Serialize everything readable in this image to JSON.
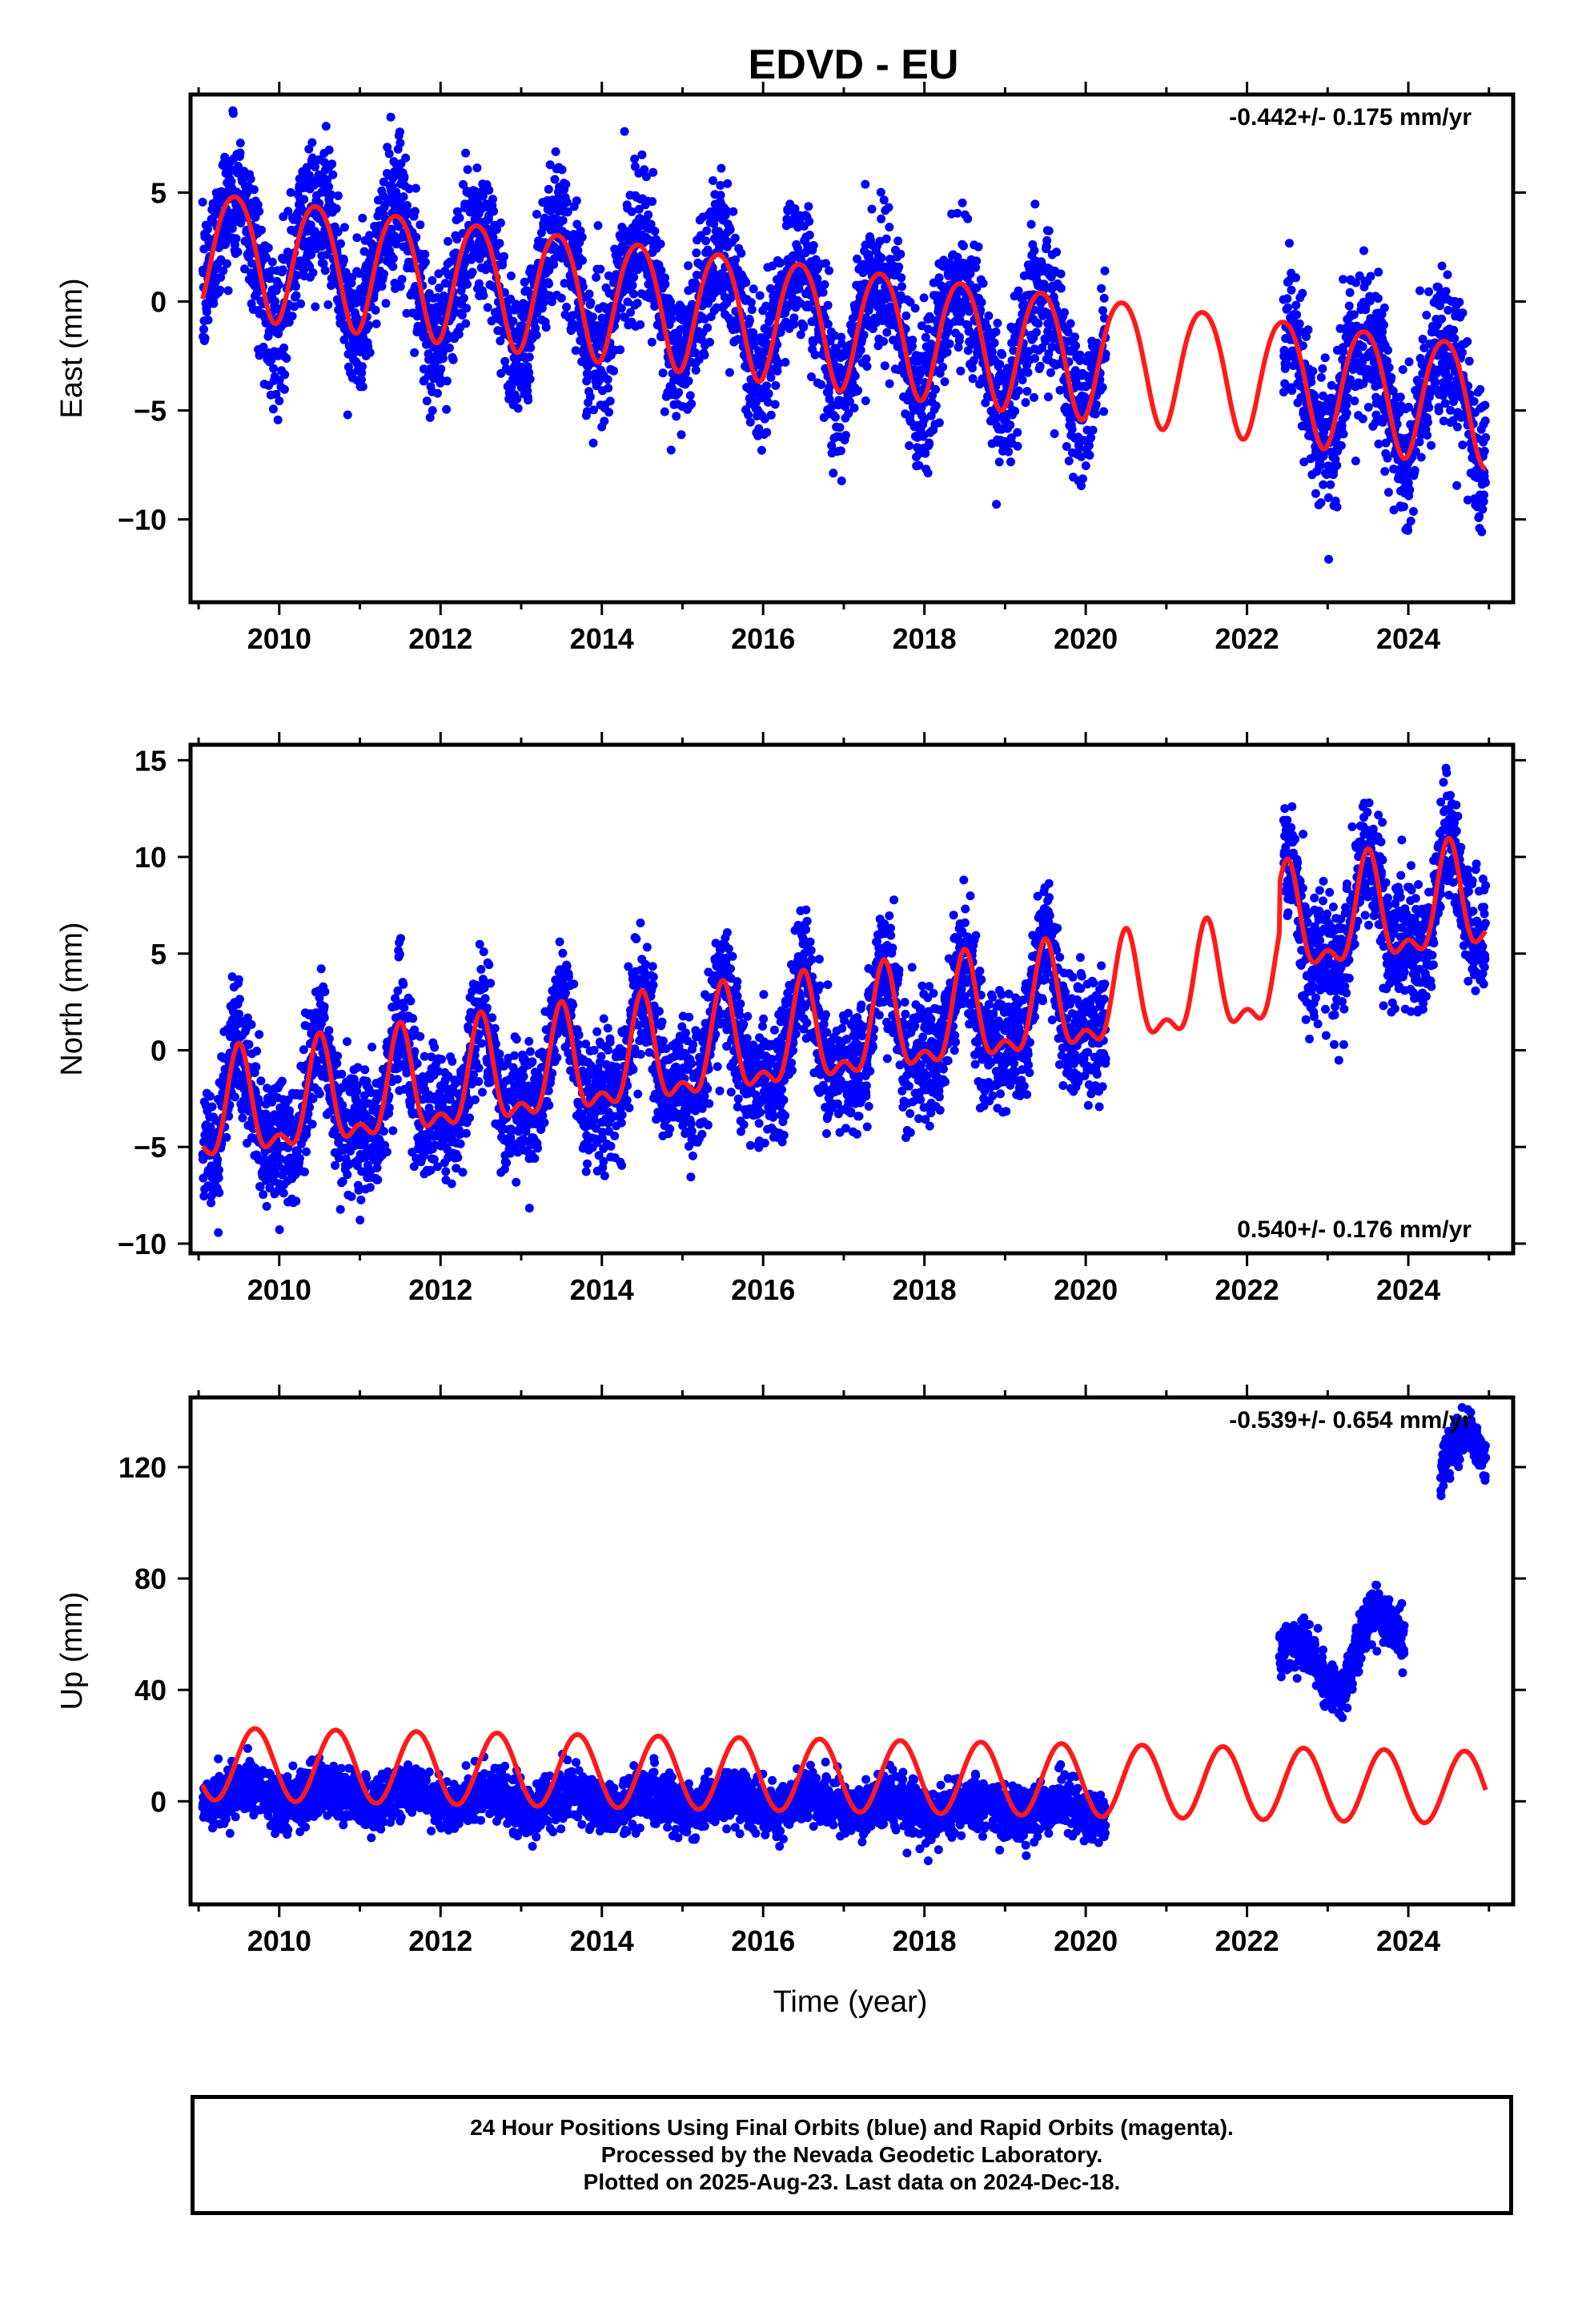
{
  "title": "EDVD - EU",
  "colors": {
    "data": "#0000ff",
    "model": "#ff1a1a",
    "axes": "#000000"
  },
  "xlabel": "Time (year)",
  "footer": {
    "line1": "24 Hour Positions Using Final Orbits (blue) and Rapid Orbits (magenta).",
    "line2": "Processed by the Nevada Geodetic Laboratory.",
    "line3": "Plotted on 2025-Aug-23. Last data on 2024-Dec-18."
  },
  "chart_data": [
    {
      "type": "scatter",
      "ylabel": "East (mm)",
      "rate_label": "-0.442+/- 0.175 mm/yr",
      "rate_position": "top-right",
      "xlim": [
        2008.9,
        2025.3
      ],
      "ylim": [
        -13.8,
        9.5
      ],
      "xticks": [
        2010,
        2012,
        2014,
        2016,
        2018,
        2020,
        2022,
        2024
      ],
      "xtick_labels": [
        "2010",
        "2012",
        "2014",
        "2016",
        "2018",
        "2020",
        "2022",
        "2024"
      ],
      "yticks": [
        -10,
        -5,
        0,
        5
      ],
      "ytick_labels": [
        "−10",
        "−5",
        "0",
        "5"
      ],
      "gaps": [
        [
          2020.25,
          2022.45
        ]
      ],
      "data_span": [
        2009.05,
        2024.96
      ],
      "model": {
        "offset": 2.5,
        "rate_mm_yr": -0.442,
        "annual_amp": 2.8,
        "annual_peak": 2009.45,
        "semiannual_amp": 0.3,
        "semiannual_peak": 2009.2
      },
      "scatter_std": 1.6,
      "series": [
        {
          "name": "Final Orbits (blue)",
          "role": "data",
          "color": "#0000ff"
        },
        {
          "role": "model",
          "color": "#ff1a1a"
        }
      ]
    },
    {
      "type": "scatter",
      "ylabel": "North (mm)",
      "rate_label": "0.540+/- 0.176 mm/yr",
      "rate_position": "bottom-right",
      "xlim": [
        2008.9,
        2025.3
      ],
      "ylim": [
        -10.5,
        15.8
      ],
      "xticks": [
        2010,
        2012,
        2014,
        2016,
        2018,
        2020,
        2022,
        2024
      ],
      "xtick_labels": [
        "2010",
        "2012",
        "2014",
        "2016",
        "2018",
        "2020",
        "2022",
        "2024"
      ],
      "yticks": [
        -10,
        -5,
        0,
        5,
        10,
        15
      ],
      "ytick_labels": [
        "−10",
        "−5",
        "0",
        "5",
        "10",
        "15"
      ],
      "gaps": [
        [
          2020.25,
          2022.45
        ]
      ],
      "data_span": [
        2009.05,
        2024.96
      ],
      "model": {
        "offset": -3.6,
        "rate_mm_yr": 0.54,
        "annual_amp": 2.5,
        "annual_peak": 2009.5,
        "semiannual_amp": 1.2,
        "semiannual_peak": 2009.5,
        "jump_year": 2022.4,
        "jump_mm": 2.5
      },
      "scatter_std": 1.6,
      "series": [
        {
          "name": "Final Orbits (blue)",
          "role": "data",
          "color": "#0000ff"
        },
        {
          "role": "model",
          "color": "#ff1a1a"
        }
      ]
    },
    {
      "type": "scatter",
      "ylabel": "Up (mm)",
      "rate_label": "-0.539+/- 0.654 mm/yr",
      "rate_position": "top-right",
      "xlim": [
        2008.9,
        2025.3
      ],
      "ylim": [
        -37,
        145
      ],
      "xticks": [
        2010,
        2012,
        2014,
        2016,
        2018,
        2020,
        2022,
        2024
      ],
      "xtick_labels": [
        "2010",
        "2012",
        "2014",
        "2016",
        "2018",
        "2020",
        "2022",
        "2024"
      ],
      "yticks": [
        0,
        40,
        80,
        120
      ],
      "ytick_labels": [
        "0",
        "40",
        "80",
        "120"
      ],
      "gaps": [
        [
          2020.25,
          2022.4
        ]
      ],
      "data_span": [
        2009.05,
        2024.96
      ],
      "model": {
        "offset": 13.5,
        "rate_mm_yr": -0.539,
        "annual_amp": 13.0,
        "annual_peak": 2009.7,
        "semiannual_amp": 0,
        "semiannual_peak": 2009.5
      },
      "data_segments": [
        {
          "from": 2009.05,
          "to": 2020.25,
          "mean": 2.5,
          "trend_mm_yr": -0.5,
          "annual_amp": 3.0,
          "std": 4.5
        },
        {
          "from": 2022.4,
          "to": 2023.95,
          "shape": [
            [
              2022.4,
              55
            ],
            [
              2022.7,
              57
            ],
            [
              2022.95,
              45
            ],
            [
              2023.15,
              38
            ],
            [
              2023.4,
              58
            ],
            [
              2023.6,
              70
            ],
            [
              2023.95,
              58
            ]
          ],
          "std": 4.5
        },
        {
          "from": 2024.4,
          "to": 2024.96,
          "shape": [
            [
              2024.4,
              116
            ],
            [
              2024.55,
              128
            ],
            [
              2024.75,
              132
            ],
            [
              2024.96,
              122
            ]
          ],
          "std": 4.0
        }
      ],
      "series": [
        {
          "name": "Final Orbits (blue)",
          "role": "data",
          "color": "#0000ff"
        },
        {
          "role": "model",
          "color": "#ff1a1a"
        }
      ]
    }
  ]
}
